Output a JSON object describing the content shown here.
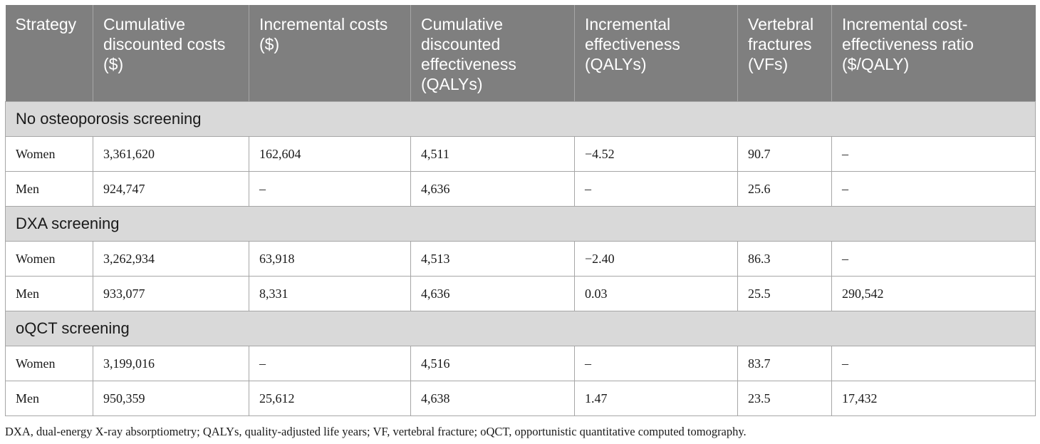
{
  "columns": [
    "Strategy",
    "Cumulative discounted costs ($)",
    "Incremental costs ($)",
    "Cumulative discounted effectiveness (QALYs)",
    "Incremental effectiveness (QALYs)",
    "Vertebral fractures (VFs)",
    "Incremental cost-effectiveness ratio ($/QALY)"
  ],
  "groups": [
    {
      "title": "No osteoporosis screening",
      "rows": [
        [
          "Women",
          "3,361,620",
          "162,604",
          "4,511",
          "−4.52",
          "90.7",
          "–"
        ],
        [
          "Men",
          "924,747",
          "–",
          "4,636",
          "–",
          "25.6",
          "–"
        ]
      ]
    },
    {
      "title": "DXA screening",
      "rows": [
        [
          "Women",
          "3,262,934",
          "63,918",
          "4,513",
          "−2.40",
          "86.3",
          "–"
        ],
        [
          "Men",
          "933,077",
          "8,331",
          "4,636",
          "0.03",
          "25.5",
          "290,542"
        ]
      ]
    },
    {
      "title": "oQCT screening",
      "rows": [
        [
          "Women",
          "3,199,016",
          "–",
          "4,516",
          "–",
          "83.7",
          "–"
        ],
        [
          "Men",
          "950,359",
          "25,612",
          "4,638",
          "1.47",
          "23.5",
          "17,432"
        ]
      ]
    }
  ],
  "footnote": "DXA, dual-energy X-ray absorptiometry; QALYs, quality-adjusted life years; VF, vertebral fracture; oQCT, opportunistic quantitative computed tomography."
}
